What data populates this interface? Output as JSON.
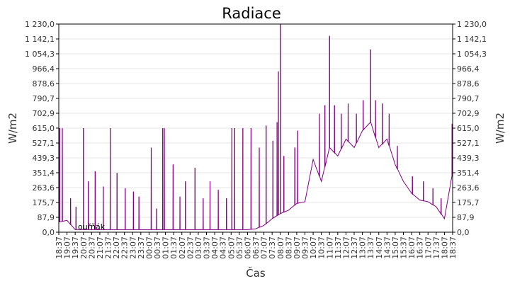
{
  "chart_data": {
    "type": "line",
    "title": "Radiace",
    "xlabel": "Čas",
    "ylabel": "W/m2",
    "ylim": [
      0,
      1230
    ],
    "grid": true,
    "series_color": "#800080",
    "yticks": [
      "0,0",
      "87,9",
      "175,7",
      "263,6",
      "351,4",
      "439,3",
      "527,1",
      "615,0",
      "702,9",
      "790,7",
      "878,6",
      "966,4",
      "1 054,3",
      "1 142,1",
      "1 230,0"
    ],
    "ytick_values": [
      0,
      87.9,
      175.7,
      263.6,
      351.4,
      439.3,
      527.1,
      615.0,
      702.9,
      790.7,
      878.6,
      966.4,
      1054.3,
      1142.1,
      1230.0
    ],
    "xticks": [
      "18:37",
      "19:07",
      "19:37",
      "20:07",
      "20:37",
      "21:07",
      "21:37",
      "22:07",
      "22:37",
      "23:07",
      "23:37",
      "00:07",
      "00:37",
      "01:07",
      "01:37",
      "02:07",
      "02:37",
      "03:07",
      "03:37",
      "04:07",
      "04:37",
      "05:07",
      "05:37",
      "06:07",
      "06:37",
      "07:07",
      "07:37",
      "08:07",
      "08:37",
      "09:07",
      "09:37",
      "10:07",
      "10:37",
      "11:07",
      "11:37",
      "12:07",
      "12:37",
      "13:07",
      "13:37",
      "14:07",
      "14:37",
      "15:07",
      "15:37",
      "16:07",
      "16:37",
      "17:07",
      "17:37",
      "18:07",
      "18:37"
    ],
    "baseline": [
      60,
      70,
      15,
      15,
      15,
      15,
      15,
      15,
      15,
      15,
      15,
      15,
      15,
      15,
      15,
      15,
      15,
      15,
      15,
      15,
      15,
      15,
      15,
      15,
      20,
      40,
      80,
      110,
      130,
      170,
      180,
      430,
      300,
      500,
      450,
      550,
      500,
      600,
      650,
      500,
      550,
      400,
      300,
      230,
      190,
      180,
      150,
      80,
      350
    ],
    "spikes": [
      {
        "time": "18:40",
        "value": 615
      },
      {
        "time": "18:50",
        "value": 615
      },
      {
        "time": "19:20",
        "value": 200
      },
      {
        "time": "19:40",
        "value": 150
      },
      {
        "time": "20:07",
        "value": 615
      },
      {
        "time": "20:25",
        "value": 300
      },
      {
        "time": "20:50",
        "value": 360
      },
      {
        "time": "21:20",
        "value": 270
      },
      {
        "time": "21:45",
        "value": 615
      },
      {
        "time": "22:10",
        "value": 350
      },
      {
        "time": "22:40",
        "value": 260
      },
      {
        "time": "23:10",
        "value": 240
      },
      {
        "time": "23:30",
        "value": 210
      },
      {
        "time": "00:15",
        "value": 500
      },
      {
        "time": "00:35",
        "value": 140
      },
      {
        "time": "00:57",
        "value": 615
      },
      {
        "time": "01:03",
        "value": 615
      },
      {
        "time": "01:35",
        "value": 400
      },
      {
        "time": "02:00",
        "value": 210
      },
      {
        "time": "02:20",
        "value": 300
      },
      {
        "time": "02:55",
        "value": 380
      },
      {
        "time": "03:25",
        "value": 200
      },
      {
        "time": "03:50",
        "value": 300
      },
      {
        "time": "04:20",
        "value": 250
      },
      {
        "time": "04:50",
        "value": 200
      },
      {
        "time": "05:10",
        "value": 615
      },
      {
        "time": "05:20",
        "value": 615
      },
      {
        "time": "05:50",
        "value": 615
      },
      {
        "time": "06:20",
        "value": 615
      },
      {
        "time": "06:50",
        "value": 500
      },
      {
        "time": "07:15",
        "value": 630
      },
      {
        "time": "07:40",
        "value": 540
      },
      {
        "time": "07:55",
        "value": 650
      },
      {
        "time": "08:00",
        "value": 950
      },
      {
        "time": "08:07",
        "value": 1230
      },
      {
        "time": "08:20",
        "value": 450
      },
      {
        "time": "09:00",
        "value": 500
      },
      {
        "time": "09:10",
        "value": 600
      },
      {
        "time": "10:30",
        "value": 700
      },
      {
        "time": "10:50",
        "value": 750
      },
      {
        "time": "11:07",
        "value": 1160
      },
      {
        "time": "11:25",
        "value": 750
      },
      {
        "time": "11:50",
        "value": 700
      },
      {
        "time": "12:15",
        "value": 760
      },
      {
        "time": "12:45",
        "value": 700
      },
      {
        "time": "13:10",
        "value": 780
      },
      {
        "time": "13:37",
        "value": 1080
      },
      {
        "time": "13:55",
        "value": 780
      },
      {
        "time": "14:20",
        "value": 760
      },
      {
        "time": "14:45",
        "value": 700
      },
      {
        "time": "15:15",
        "value": 510
      },
      {
        "time": "16:10",
        "value": 330
      },
      {
        "time": "16:50",
        "value": 300
      },
      {
        "time": "17:25",
        "value": 260
      },
      {
        "time": "17:55",
        "value": 200
      },
      {
        "time": "18:35",
        "value": 640
      }
    ],
    "annotation": "ouřňák"
  }
}
